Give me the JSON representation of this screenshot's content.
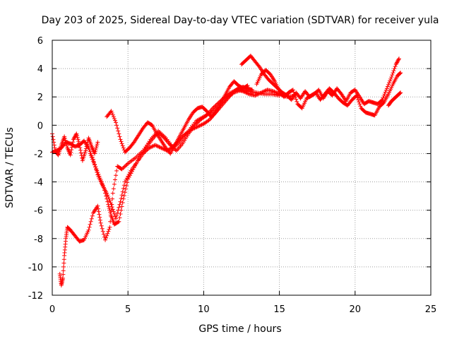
{
  "chart_data": {
    "type": "scatter",
    "title": "Day 203 of 2025, Sidereal Day-to-day VTEC variation (SDTVAR) for receiver yula",
    "xlabel": "GPS time / hours",
    "ylabel": "SDTVAR / TECUs",
    "xlim": [
      0,
      25
    ],
    "ylim": [
      -12,
      6
    ],
    "xticks": [
      0,
      5,
      10,
      15,
      20,
      25
    ],
    "yticks": [
      -12,
      -10,
      -8,
      -6,
      -4,
      -2,
      0,
      2,
      4,
      6
    ],
    "grid": true,
    "marker": "+",
    "color": "#ff0000",
    "series": [
      {
        "x": [
          0.0,
          0.3,
          0.6,
          0.9,
          1.2,
          1.5,
          1.8,
          2.1,
          2.4,
          2.7,
          3.0,
          3.3,
          3.6,
          3.9,
          4.2,
          4.5,
          4.8,
          5.2,
          5.6,
          6.0,
          6.4,
          6.8,
          7.2,
          7.6,
          8.0,
          8.4,
          8.8,
          9.2,
          9.6,
          10.0,
          10.4,
          10.8,
          11.2,
          11.6,
          12.0,
          12.3,
          12.6,
          12.9,
          13.2
        ],
        "y": [
          -1.9,
          -1.8,
          -1.6,
          -1.2,
          -1.3,
          -1.5,
          -1.4,
          -1.1,
          -1.6,
          -2.4,
          -3.5,
          -4.2,
          -4.8,
          -5.6,
          -6.6,
          -5.4,
          -4.0,
          -3.2,
          -2.6,
          -2.0,
          -1.6,
          -1.4,
          -1.6,
          -1.8,
          -1.5,
          -1.0,
          -0.6,
          -0.3,
          -0.1,
          0.1,
          0.4,
          0.9,
          1.4,
          1.9,
          2.4,
          2.6,
          2.7,
          2.6,
          2.5
        ]
      },
      {
        "x": [
          0.5,
          0.6,
          0.7,
          0.8,
          0.9,
          1.0,
          1.2,
          1.5,
          1.8,
          2.1,
          2.4,
          2.7,
          3.0,
          3.2,
          3.5,
          3.8,
          4.0,
          4.3,
          4.6,
          5.0,
          5.5,
          6.0,
          6.5,
          7.0,
          7.5,
          8.0,
          8.5,
          9.0,
          9.5,
          10.0,
          10.5,
          11.0,
          11.5,
          12.0,
          12.5,
          13.0,
          13.5,
          14.0,
          14.5,
          15.0
        ],
        "y": [
          -10.5,
          -11.3,
          -10.8,
          -9.2,
          -8.0,
          -7.2,
          -7.4,
          -7.8,
          -8.2,
          -8.1,
          -7.4,
          -6.2,
          -5.7,
          -6.9,
          -8.1,
          -7.2,
          -4.8,
          -2.9,
          -3.1,
          -2.7,
          -2.3,
          -1.8,
          -1.0,
          -0.4,
          -0.9,
          -1.6,
          -1.1,
          -0.4,
          0.3,
          0.6,
          0.9,
          1.3,
          1.9,
          2.3,
          2.5,
          2.4,
          2.3,
          2.2,
          2.2,
          2.1
        ]
      },
      {
        "x": [
          2.5,
          2.8,
          3.1,
          3.4,
          3.7,
          3.9,
          4.1,
          4.4,
          4.7,
          5.0,
          5.4,
          5.8,
          6.2,
          6.6,
          7.0,
          7.4,
          7.8,
          8.2,
          8.6,
          9.0,
          9.4,
          9.8,
          10.2,
          10.6,
          11.0,
          11.4,
          11.8,
          12.2,
          12.6,
          13.0,
          13.4,
          13.8,
          14.2,
          14.6,
          15.0,
          15.5,
          16.0
        ],
        "y": [
          -2.0,
          -2.8,
          -3.6,
          -4.4,
          -5.6,
          -6.4,
          -7.0,
          -6.8,
          -5.2,
          -3.8,
          -3.0,
          -2.2,
          -1.6,
          -1.0,
          -0.5,
          -0.9,
          -1.4,
          -1.8,
          -1.3,
          -0.6,
          0.0,
          0.4,
          0.7,
          1.2,
          1.6,
          2.0,
          2.3,
          2.5,
          2.4,
          2.2,
          2.1,
          2.3,
          2.5,
          2.4,
          2.2,
          2.0,
          2.1
        ]
      },
      {
        "x": [
          3.6,
          3.9,
          4.2,
          4.5,
          4.8,
          5.1,
          5.4,
          5.7,
          6.0,
          6.3,
          6.6,
          6.9,
          7.2,
          7.5,
          7.8,
          8.1,
          8.4,
          8.7,
          9.0,
          9.3,
          9.6,
          9.9,
          10.2,
          10.5,
          10.8,
          11.1,
          11.4,
          11.7,
          12.0,
          12.3,
          12.6,
          12.9
        ],
        "y": [
          0.6,
          1.0,
          0.2,
          -1.0,
          -1.9,
          -1.6,
          -1.2,
          -0.7,
          -0.2,
          0.2,
          0.0,
          -0.6,
          -1.1,
          -1.6,
          -2.0,
          -1.4,
          -0.8,
          -0.2,
          0.4,
          0.9,
          1.2,
          1.3,
          1.0,
          0.6,
          0.9,
          1.5,
          2.1,
          2.7,
          3.1,
          2.8,
          2.6,
          2.8
        ]
      },
      {
        "x": [
          12.5,
          12.8,
          13.1,
          13.4,
          13.7,
          14.0,
          14.3,
          14.6,
          14.9,
          15.2,
          15.5,
          15.8,
          16.1,
          16.4,
          16.7,
          17.0,
          17.3,
          17.6,
          17.9,
          18.2,
          18.5,
          18.8,
          19.1,
          19.4,
          19.7,
          20.0,
          20.3,
          20.6,
          20.9,
          21.2,
          21.5,
          21.8,
          22.1,
          22.4,
          22.7,
          22.9
        ],
        "y": [
          4.3,
          4.6,
          4.9,
          4.5,
          4.1,
          3.6,
          3.2,
          2.9,
          2.6,
          2.3,
          2.1,
          1.8,
          2.3,
          1.9,
          2.4,
          2.0,
          2.2,
          2.5,
          1.9,
          2.4,
          2.1,
          2.6,
          2.2,
          1.7,
          2.3,
          2.5,
          2.0,
          1.5,
          1.7,
          1.6,
          1.5,
          1.8,
          2.6,
          3.4,
          4.3,
          4.7
        ]
      },
      {
        "x": [
          13.5,
          13.8,
          14.1,
          14.4,
          14.7,
          15.0,
          15.3,
          15.6,
          15.9,
          16.2,
          16.5,
          16.8,
          17.1,
          17.4,
          17.7,
          18.0,
          18.3,
          18.6,
          18.9,
          19.2,
          19.5,
          19.8,
          20.1,
          20.4,
          20.7,
          21.0,
          21.3,
          21.6,
          21.9,
          22.2,
          22.5,
          22.8,
          23.0
        ],
        "y": [
          2.9,
          3.6,
          3.9,
          3.6,
          3.1,
          2.4,
          2.0,
          2.3,
          2.5,
          1.5,
          1.2,
          1.9,
          2.1,
          2.3,
          1.8,
          2.2,
          2.6,
          2.3,
          1.9,
          1.6,
          1.4,
          1.8,
          2.1,
          1.2,
          0.9,
          0.8,
          0.7,
          1.3,
          1.6,
          2.2,
          2.9,
          3.5,
          3.7
        ]
      },
      {
        "x": [
          22.2,
          22.4,
          22.6,
          22.8,
          23.0
        ],
        "y": [
          1.4,
          1.7,
          1.9,
          2.1,
          2.3
        ]
      },
      {
        "x": [
          0.0,
          0.2,
          0.4,
          0.6,
          0.8,
          1.0,
          1.2,
          1.4,
          1.6,
          1.8,
          2.0,
          2.2,
          2.4,
          2.6,
          2.8,
          3.0
        ],
        "y": [
          -0.6,
          -1.8,
          -2.1,
          -1.4,
          -0.8,
          -1.6,
          -2.1,
          -1.0,
          -0.6,
          -1.4,
          -2.5,
          -1.8,
          -0.9,
          -1.5,
          -2.0,
          -1.2
        ]
      }
    ]
  }
}
